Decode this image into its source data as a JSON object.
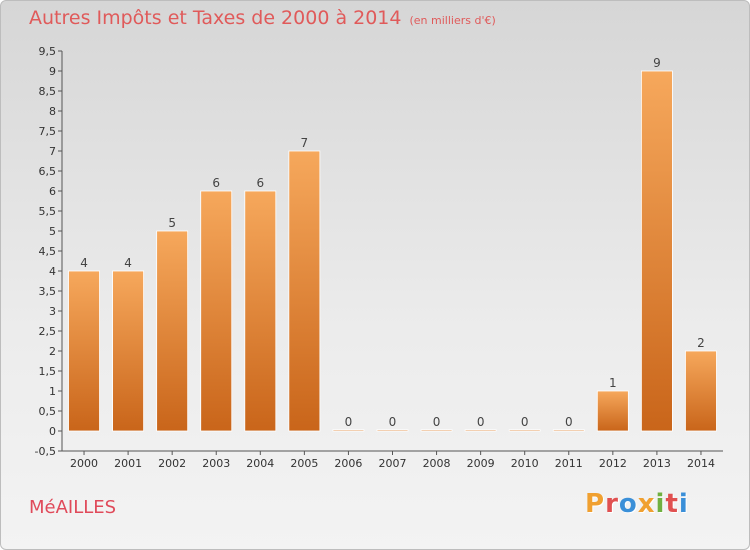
{
  "header": {
    "title": "Autres Impôts et Taxes de 2000 à 2014",
    "unit": "(en milliers d'€)"
  },
  "footer": {
    "commune": "MéAILLES",
    "logo_text": "Proxiti",
    "logo_colors": [
      "#f0a030",
      "#e05050",
      "#3a8fd8",
      "#f0a030",
      "#70b040",
      "#e05050",
      "#3a8fd8"
    ]
  },
  "colors": {
    "bar_top": "#f6a85c",
    "bar_bottom": "#c9651a",
    "bar_edge": "#ffffff",
    "title": "#e05a5a",
    "axis": "#555555"
  },
  "chart_data": {
    "type": "bar",
    "title": "Autres Impôts et Taxes de 2000 à 2014",
    "ylabel": "(en milliers d'€)",
    "categories": [
      "2000",
      "2001",
      "2002",
      "2003",
      "2004",
      "2005",
      "2006",
      "2007",
      "2008",
      "2009",
      "2010",
      "2011",
      "2012",
      "2013",
      "2014"
    ],
    "values": [
      4,
      4,
      5,
      6,
      6,
      7,
      0,
      0,
      0,
      0,
      0,
      0,
      1,
      9,
      2
    ],
    "data_labels": [
      "4",
      "4",
      "5",
      "6",
      "6",
      "7",
      "0",
      "0",
      "0",
      "0",
      "0",
      "0",
      "1",
      "9",
      "2"
    ],
    "y_ticks": [
      "-0,5",
      "0",
      "0,5",
      "1",
      "1,5",
      "2",
      "2,5",
      "3",
      "3,5",
      "4",
      "4,5",
      "5",
      "5,5",
      "6",
      "6,5",
      "7",
      "7,5",
      "8",
      "8,5",
      "9",
      "9,5"
    ],
    "ylim": [
      -0.5,
      9.5
    ],
    "grid": false,
    "legend": "none"
  }
}
